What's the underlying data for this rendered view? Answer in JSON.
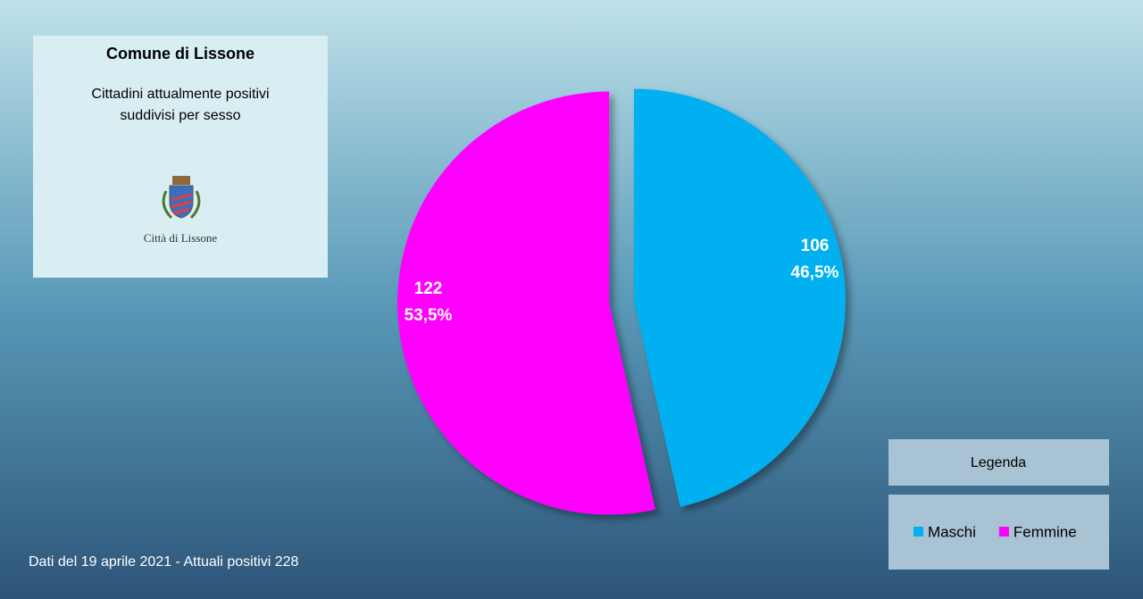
{
  "chart_data": {
    "type": "pie",
    "title": "Comune di Lissone",
    "subtitle": [
      "Cittadini attualmente positivi",
      "suddivisi per sesso"
    ],
    "logo_caption": "Città di Lissone",
    "footer": "Dati del 19 aprile 2021 - Attuali positivi 228",
    "legend_title": "Legenda",
    "categories": [
      "Maschi",
      "Femmine"
    ],
    "values": [
      106,
      122
    ],
    "colors": [
      "#00b0f0",
      "#ff00ff"
    ],
    "percentages": [
      46.5,
      53.5
    ],
    "percentage_labels": [
      "46,5%",
      "53,5%"
    ]
  }
}
